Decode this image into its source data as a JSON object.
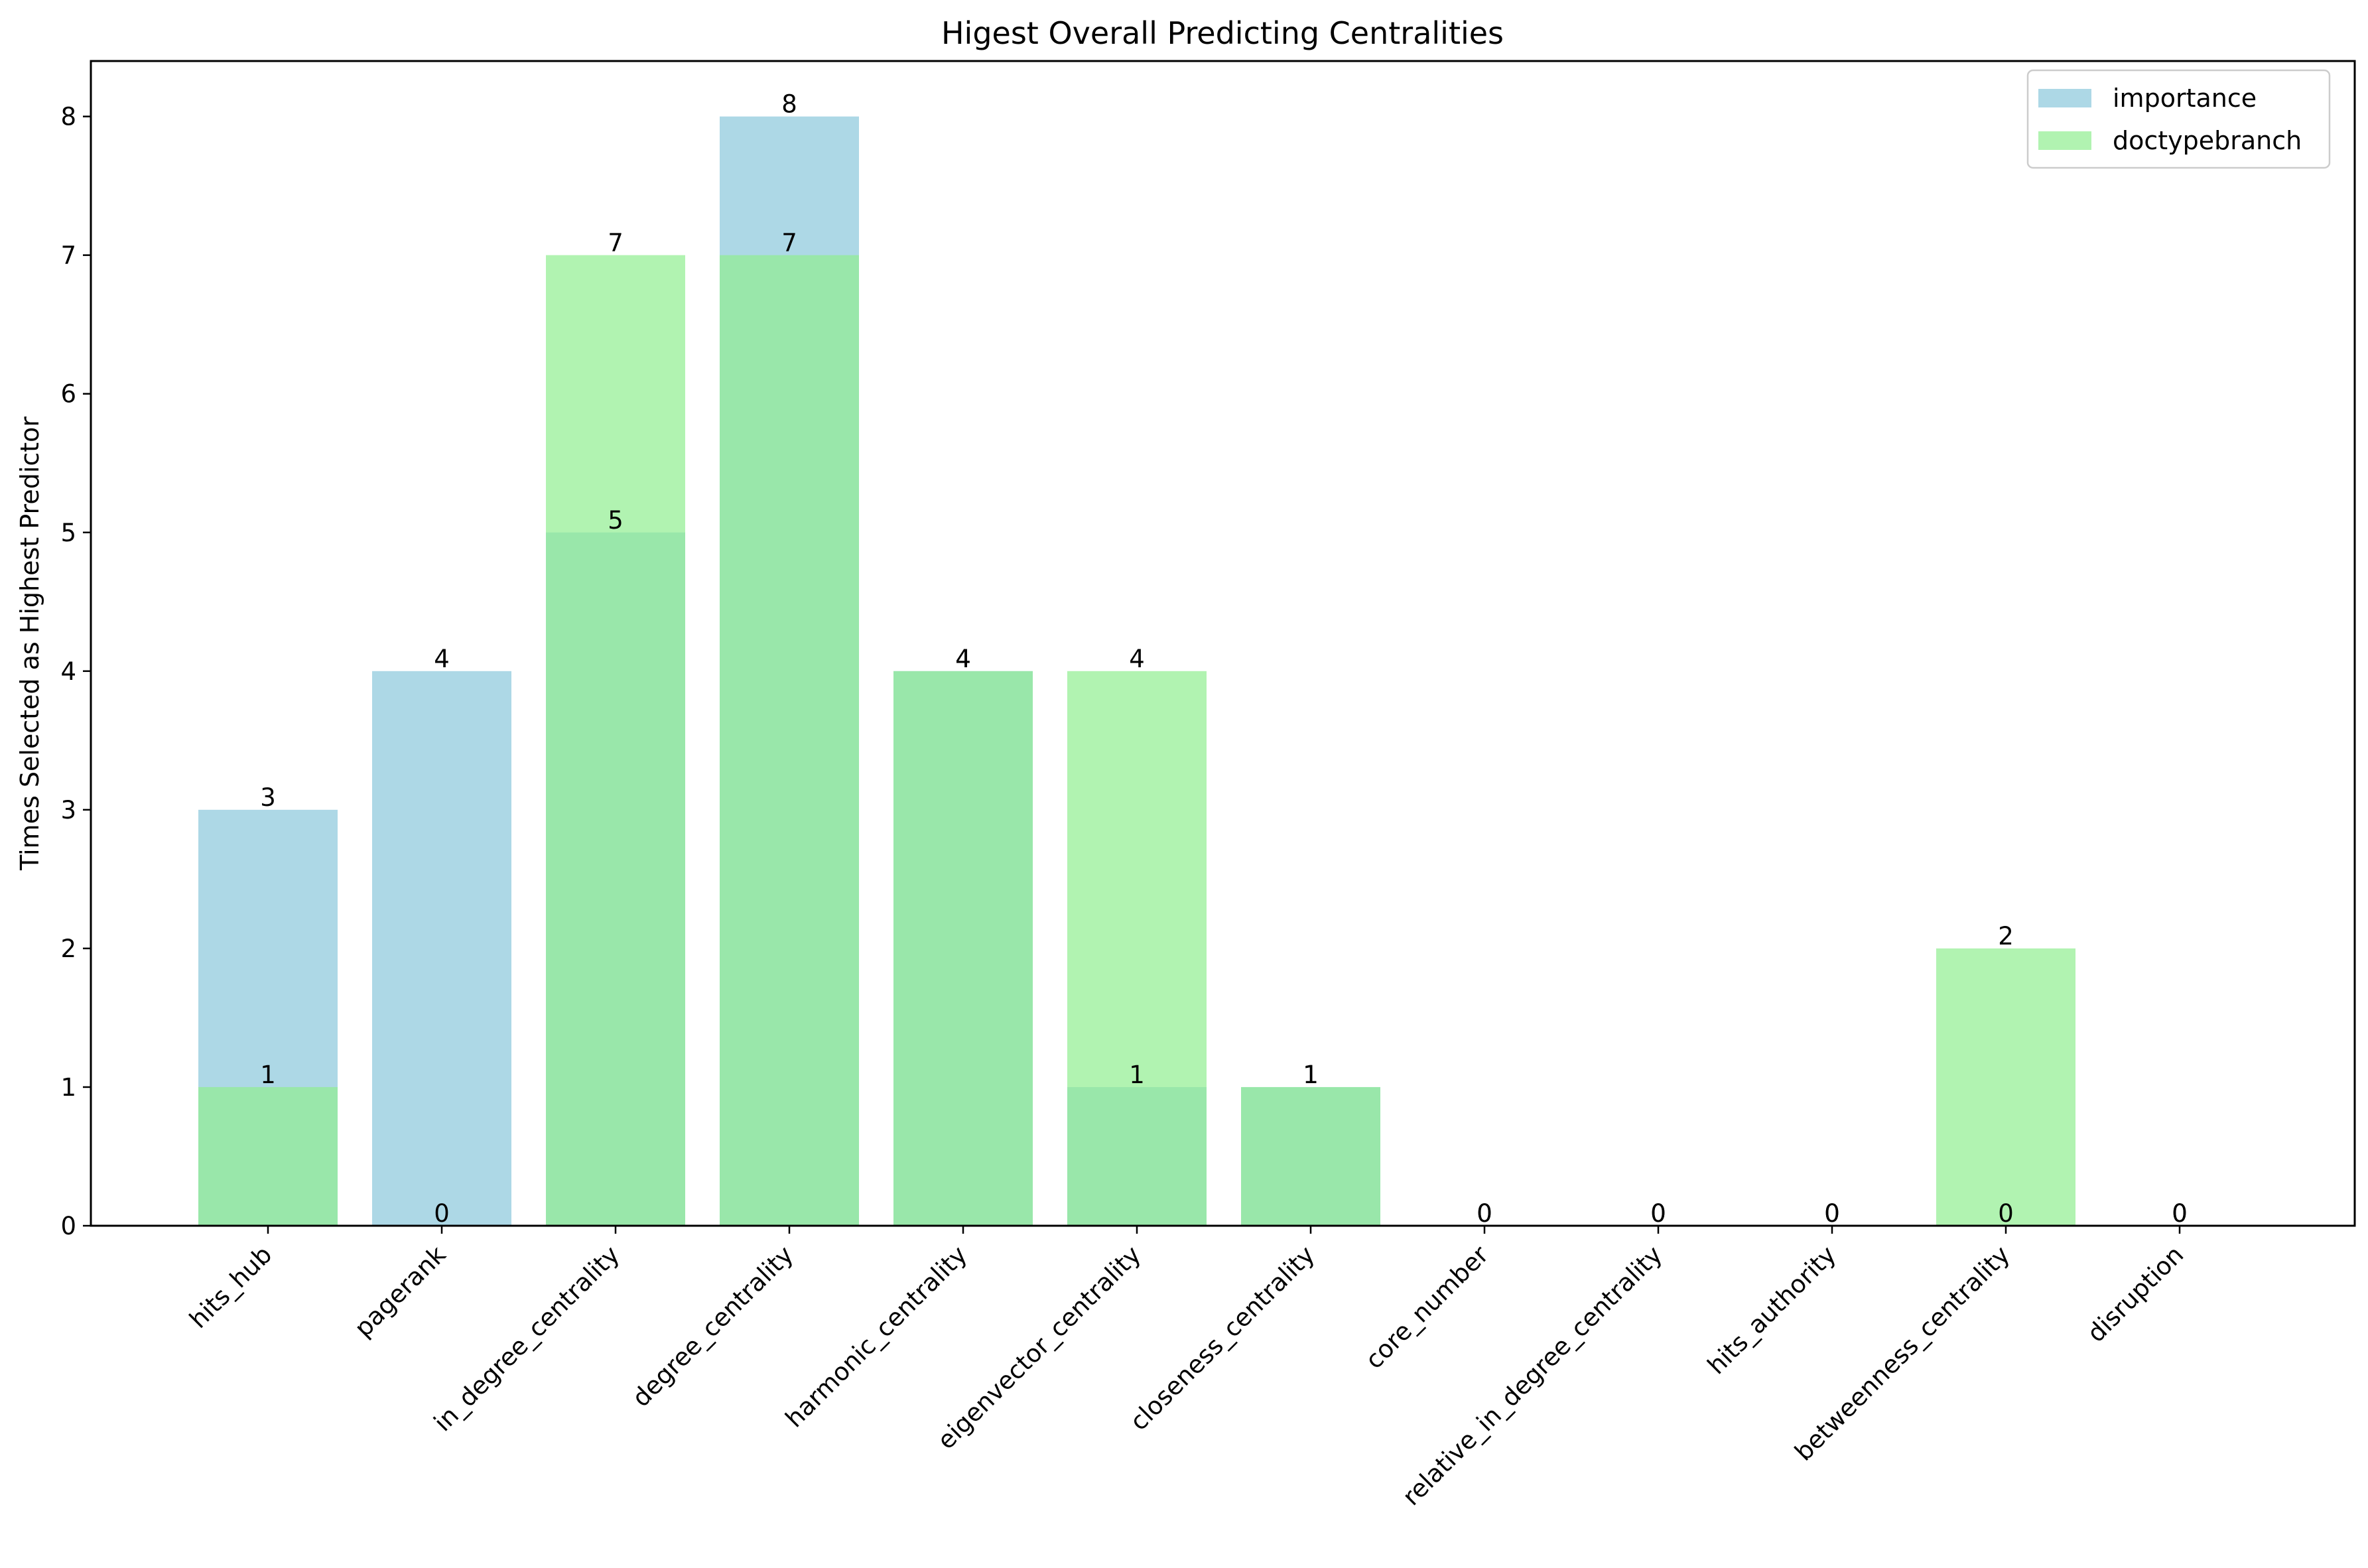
{
  "chart_data": {
    "type": "bar",
    "title": "Higest Overall Predicting Centralities",
    "xlabel": "",
    "ylabel": "Times Selected as Highest Predictor",
    "categories": [
      "hits_hub",
      "pagerank",
      "in_degree_centrality",
      "degree_centrality",
      "harmonic_centrality",
      "eigenvector_centrality",
      "closeness_centrality",
      "core_number",
      "relative_in_degree_centrality",
      "hits_authority",
      "betweenness_centrality",
      "disruption"
    ],
    "series": [
      {
        "name": "importance",
        "color": "#add8e6",
        "values": [
          3,
          4,
          5,
          8,
          4,
          1,
          1,
          0,
          0,
          0,
          0,
          0
        ]
      },
      {
        "name": "doctypebranch",
        "color": "#90ee90",
        "values": [
          1,
          0,
          7,
          7,
          4,
          4,
          1,
          0,
          0,
          0,
          2,
          0
        ]
      }
    ],
    "ylim": [
      0,
      8.4
    ],
    "yticks": [
      "0",
      "1",
      "2",
      "3",
      "4",
      "5",
      "6",
      "7",
      "8"
    ],
    "overlay_alpha": 0.7,
    "overlap_color": "#98e6aa",
    "legend_position": "top-right",
    "grid": false
  }
}
